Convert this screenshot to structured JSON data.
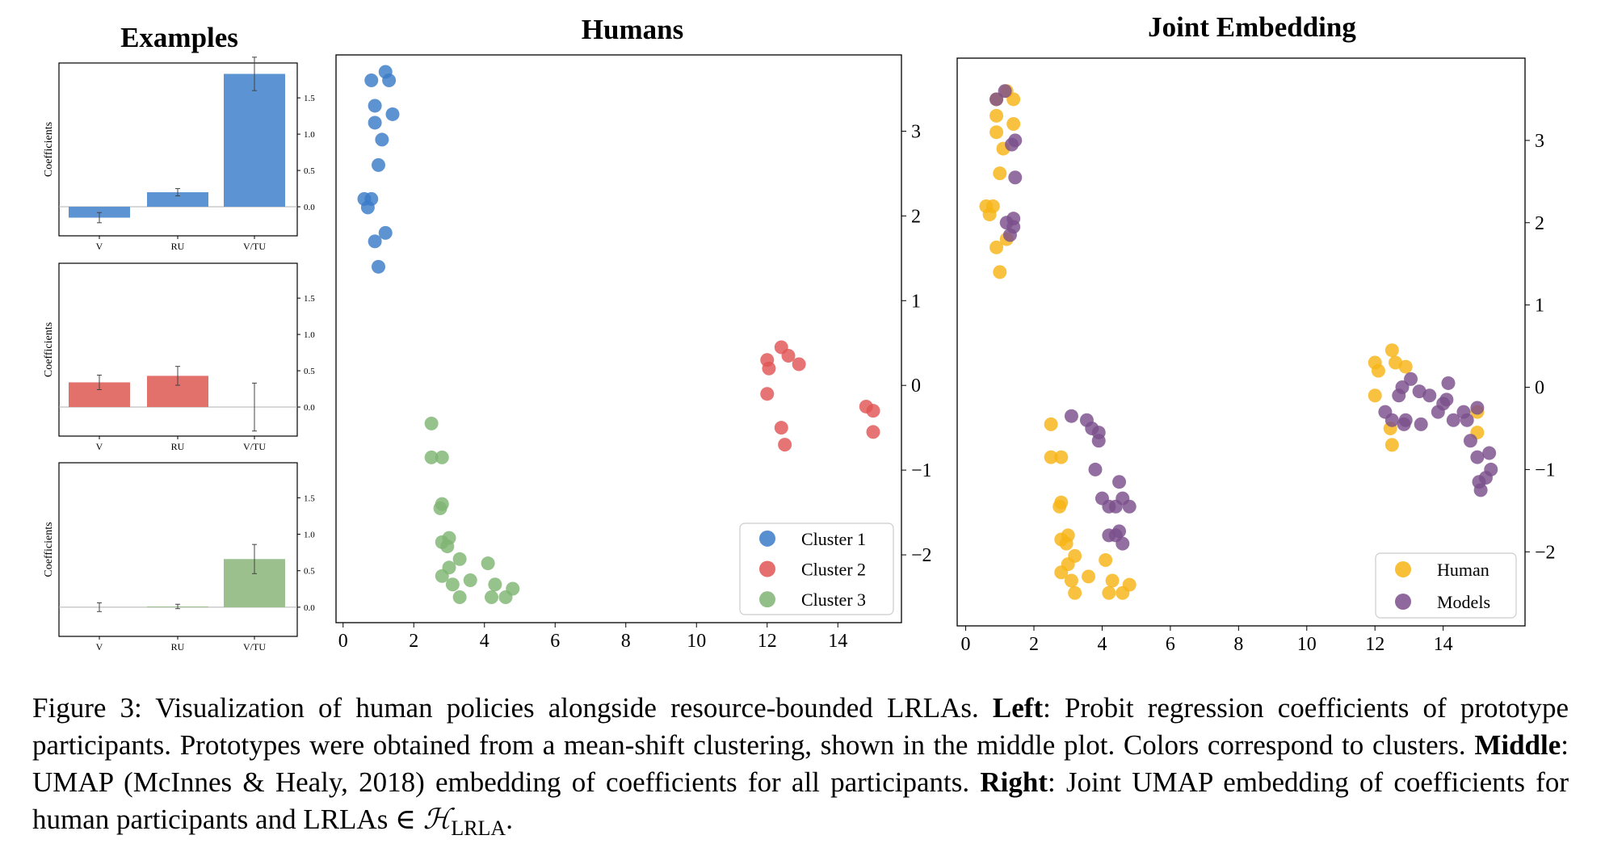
{
  "panels": {
    "examples_title": "Examples",
    "humans_title": "Humans",
    "joint_title": "Joint Embedding"
  },
  "colors": {
    "cluster1": "#3a7bc8",
    "cluster2": "#e05555",
    "cluster3": "#7fb473",
    "human": "#f7b416",
    "models": "#7b4f8c",
    "bar_blue": "#5b93d3",
    "bar_red": "#e2716b",
    "bar_green": "#9cc08d"
  },
  "chart_data": [
    {
      "type": "bar",
      "categories": [
        "V",
        "RU",
        "V/TU"
      ],
      "values": [
        -0.15,
        0.2,
        1.83
      ],
      "errors": [
        0.07,
        0.05,
        0.23
      ],
      "ylabel": "Coefficients",
      "yticks": [
        0.0,
        0.5,
        1.0,
        1.5
      ],
      "ylim": [
        -0.4,
        1.98
      ],
      "color": "bar_blue"
    },
    {
      "type": "bar",
      "categories": [
        "V",
        "RU",
        "V/TU"
      ],
      "values": [
        0.34,
        0.43,
        0.0
      ],
      "errors": [
        0.1,
        0.13,
        0.33
      ],
      "ylabel": "Coefficients",
      "yticks": [
        0.0,
        0.5,
        1.0,
        1.5
      ],
      "ylim": [
        -0.4,
        1.98
      ],
      "color": "bar_red"
    },
    {
      "type": "bar",
      "categories": [
        "V",
        "RU",
        "V/TU"
      ],
      "values": [
        0.0,
        0.01,
        0.66
      ],
      "errors": [
        0.06,
        0.03,
        0.2
      ],
      "ylabel": "Coefficients",
      "yticks": [
        0.0,
        0.5,
        1.0,
        1.5
      ],
      "ylim": [
        -0.4,
        1.98
      ],
      "color": "bar_green"
    },
    {
      "type": "scatter",
      "title": "Humans",
      "xlim": [
        -0.2,
        15.8
      ],
      "ylim": [
        -2.8,
        3.9
      ],
      "xticks": [
        0,
        2,
        4,
        6,
        8,
        10,
        12,
        14
      ],
      "yticks": [
        -2,
        -1,
        0,
        1,
        2,
        3
      ],
      "legend": "bottom-right",
      "series": [
        {
          "name": "Cluster 1",
          "color": "cluster1",
          "points": [
            [
              0.8,
              3.6
            ],
            [
              1.2,
              3.7
            ],
            [
              1.3,
              3.6
            ],
            [
              0.9,
              3.3
            ],
            [
              1.4,
              3.2
            ],
            [
              0.9,
              3.1
            ],
            [
              1.1,
              2.9
            ],
            [
              1.0,
              2.6
            ],
            [
              0.6,
              2.2
            ],
            [
              0.8,
              2.2
            ],
            [
              0.7,
              2.1
            ],
            [
              1.2,
              1.8
            ],
            [
              0.9,
              1.7
            ],
            [
              1.0,
              1.4
            ]
          ]
        },
        {
          "name": "Cluster 2",
          "color": "cluster2",
          "points": [
            [
              12.4,
              0.45
            ],
            [
              12.0,
              0.3
            ],
            [
              12.6,
              0.35
            ],
            [
              12.9,
              0.25
            ],
            [
              12.05,
              0.2
            ],
            [
              12.0,
              -0.1
            ],
            [
              14.8,
              -0.25
            ],
            [
              15.0,
              -0.3
            ],
            [
              12.4,
              -0.5
            ],
            [
              15.0,
              -0.55
            ],
            [
              12.5,
              -0.7
            ]
          ]
        },
        {
          "name": "Cluster 3",
          "color": "cluster3",
          "points": [
            [
              2.5,
              -0.45
            ],
            [
              2.5,
              -0.85
            ],
            [
              2.8,
              -0.85
            ],
            [
              2.8,
              -1.4
            ],
            [
              2.75,
              -1.45
            ],
            [
              2.8,
              -1.85
            ],
            [
              3.0,
              -1.8
            ],
            [
              2.95,
              -1.9
            ],
            [
              3.3,
              -2.05
            ],
            [
              3.0,
              -2.15
            ],
            [
              4.1,
              -2.1
            ],
            [
              2.8,
              -2.25
            ],
            [
              3.6,
              -2.3
            ],
            [
              3.1,
              -2.35
            ],
            [
              4.3,
              -2.35
            ],
            [
              4.8,
              -2.4
            ],
            [
              3.3,
              -2.5
            ],
            [
              4.6,
              -2.5
            ],
            [
              4.2,
              -2.5
            ]
          ]
        }
      ]
    },
    {
      "type": "scatter",
      "title": "Joint Embedding",
      "xlim": [
        -0.25,
        16.4
      ],
      "ylim": [
        -2.9,
        4.0
      ],
      "xticks": [
        0,
        2,
        4,
        6,
        8,
        10,
        12,
        14
      ],
      "yticks": [
        -2,
        -1,
        0,
        1,
        2,
        3
      ],
      "legend": "bottom-right",
      "series": [
        {
          "name": "Human",
          "color": "human",
          "points": [
            [
              1.2,
              3.6
            ],
            [
              0.9,
              3.5
            ],
            [
              1.4,
              3.5
            ],
            [
              0.9,
              3.3
            ],
            [
              1.4,
              3.2
            ],
            [
              0.9,
              3.1
            ],
            [
              1.1,
              2.9
            ],
            [
              1.0,
              2.6
            ],
            [
              0.6,
              2.2
            ],
            [
              0.8,
              2.2
            ],
            [
              0.7,
              2.1
            ],
            [
              1.2,
              1.8
            ],
            [
              0.9,
              1.7
            ],
            [
              1.0,
              1.4
            ],
            [
              12.5,
              0.45
            ],
            [
              12.0,
              0.3
            ],
            [
              12.1,
              0.2
            ],
            [
              12.0,
              -0.1
            ],
            [
              12.6,
              0.3
            ],
            [
              12.9,
              0.25
            ],
            [
              15.0,
              -0.3
            ],
            [
              12.45,
              -0.5
            ],
            [
              15.0,
              -0.55
            ],
            [
              12.5,
              -0.7
            ],
            [
              2.5,
              -0.45
            ],
            [
              2.5,
              -0.85
            ],
            [
              2.8,
              -0.85
            ],
            [
              2.8,
              -1.4
            ],
            [
              2.75,
              -1.45
            ],
            [
              2.8,
              -1.85
            ],
            [
              3.0,
              -1.8
            ],
            [
              2.95,
              -1.9
            ],
            [
              3.2,
              -2.05
            ],
            [
              3.0,
              -2.15
            ],
            [
              4.1,
              -2.1
            ],
            [
              2.8,
              -2.25
            ],
            [
              3.6,
              -2.3
            ],
            [
              3.1,
              -2.35
            ],
            [
              4.3,
              -2.35
            ],
            [
              4.8,
              -2.4
            ],
            [
              3.2,
              -2.5
            ],
            [
              4.6,
              -2.5
            ],
            [
              4.2,
              -2.5
            ]
          ]
        },
        {
          "name": "Models",
          "color": "models",
          "points": [
            [
              1.15,
              3.6
            ],
            [
              0.9,
              3.5
            ],
            [
              1.45,
              3.0
            ],
            [
              1.35,
              2.95
            ],
            [
              1.45,
              2.55
            ],
            [
              1.4,
              2.05
            ],
            [
              1.2,
              2.0
            ],
            [
              1.4,
              1.95
            ],
            [
              1.3,
              1.85
            ],
            [
              3.1,
              -0.35
            ],
            [
              3.55,
              -0.4
            ],
            [
              3.7,
              -0.5
            ],
            [
              3.9,
              -0.55
            ],
            [
              3.9,
              -0.65
            ],
            [
              3.8,
              -1.0
            ],
            [
              4.5,
              -1.15
            ],
            [
              4.0,
              -1.35
            ],
            [
              4.6,
              -1.35
            ],
            [
              4.2,
              -1.45
            ],
            [
              4.4,
              -1.45
            ],
            [
              4.8,
              -1.45
            ],
            [
              4.5,
              -1.75
            ],
            [
              4.2,
              -1.8
            ],
            [
              4.4,
              -1.8
            ],
            [
              4.6,
              -1.9
            ],
            [
              13.05,
              0.1
            ],
            [
              12.8,
              0.0
            ],
            [
              13.3,
              -0.05
            ],
            [
              14.15,
              0.05
            ],
            [
              12.7,
              -0.1
            ],
            [
              13.6,
              -0.1
            ],
            [
              14.1,
              -0.15
            ],
            [
              14.0,
              -0.2
            ],
            [
              15.0,
              -0.25
            ],
            [
              12.3,
              -0.3
            ],
            [
              13.85,
              -0.3
            ],
            [
              14.6,
              -0.3
            ],
            [
              12.9,
              -0.4
            ],
            [
              12.5,
              -0.4
            ],
            [
              12.85,
              -0.45
            ],
            [
              13.35,
              -0.45
            ],
            [
              14.3,
              -0.4
            ],
            [
              14.7,
              -0.4
            ],
            [
              15.35,
              -0.8
            ],
            [
              14.8,
              -0.65
            ],
            [
              15.0,
              -0.85
            ],
            [
              15.4,
              -1.0
            ],
            [
              15.25,
              -1.1
            ],
            [
              15.05,
              -1.15
            ],
            [
              15.1,
              -1.25
            ]
          ]
        }
      ]
    }
  ],
  "caption": {
    "p1": "Figure 3: Visualization of human policies alongside resource-bounded LRLAs. ",
    "left_label": "Left",
    "p2": ": Probit regression coefficients of prototype participants. Prototypes were obtained from a mean-shift clustering, shown in the middle plot. Colors correspond to clusters. ",
    "middle_label": "Middle",
    "p3": ": UMAP (McInnes & Healy, 2018) embedding of coefficients for all participants. ",
    "right_label": "Right",
    "p4": ": Joint UMAP embedding of coefficients for human participants and LRLAs ∈ ",
    "math_symbol": "ℋ",
    "math_sub": "LRLA",
    "p5": "."
  }
}
